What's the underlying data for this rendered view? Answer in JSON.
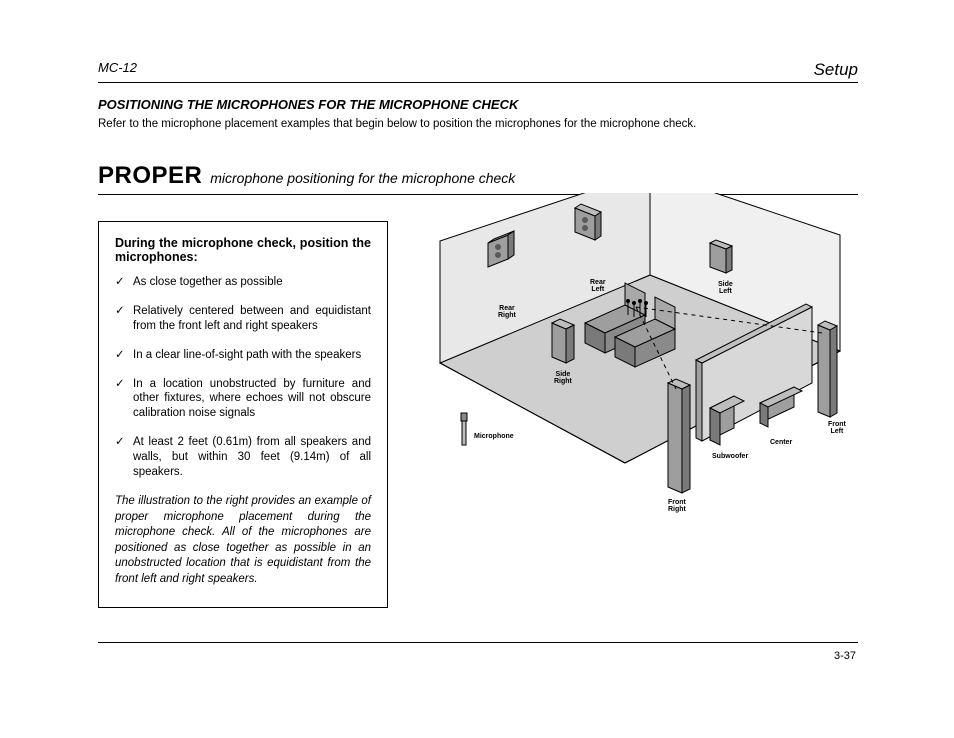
{
  "header": {
    "left": "MC-12",
    "right": "Setup"
  },
  "subheading": "POSITIONING THE MICROPHONES FOR THE MICROPHONE CHECK",
  "intro": "Refer to the microphone placement examples that begin below to position the microphones for the microphone check.",
  "proper": {
    "big": "PROPER",
    "rest": "microphone positioning for the microphone check"
  },
  "box": {
    "title": "During the microphone check, position the microphones:",
    "items": [
      "As close together as possible",
      "Relatively centered between and equidistant from the front left and right speakers",
      "In a clear line-of-sight path with the speakers",
      "In a location unobstructed by furniture and other fixtures, where echoes will not obscure calibration noise signals",
      "At least 2 feet (0.61m) from all speakers and walls, but within 30 feet (9.14m) of all speakers."
    ],
    "caption": "The illustration to the right provides an example of proper microphone placement during the microphone check. All of the microphones are positioned as close together as possible in an unobstructed location that is equidistant from the front left and right speakers."
  },
  "diagram": {
    "labels": {
      "rear_left": "Rear\nLeft",
      "rear_right": "Rear\nRight",
      "side_left": "Side\nLeft",
      "side_right": "Side\nRight",
      "front_left": "Front\nLeft",
      "front_right": "Front\nRight",
      "center": "Center",
      "subwoofer": "Subwoofer",
      "microphone": "Microphone"
    },
    "colors": {
      "room_fill": "#cfcfcf",
      "wall_fill": "#e8e8e8",
      "object_fill": "#9e9e9e",
      "object_dark": "#7a7a7a",
      "screen_fill": "#d8d8d8",
      "stroke": "#000000",
      "dash": "#000000"
    }
  },
  "pagenum": "3-37"
}
